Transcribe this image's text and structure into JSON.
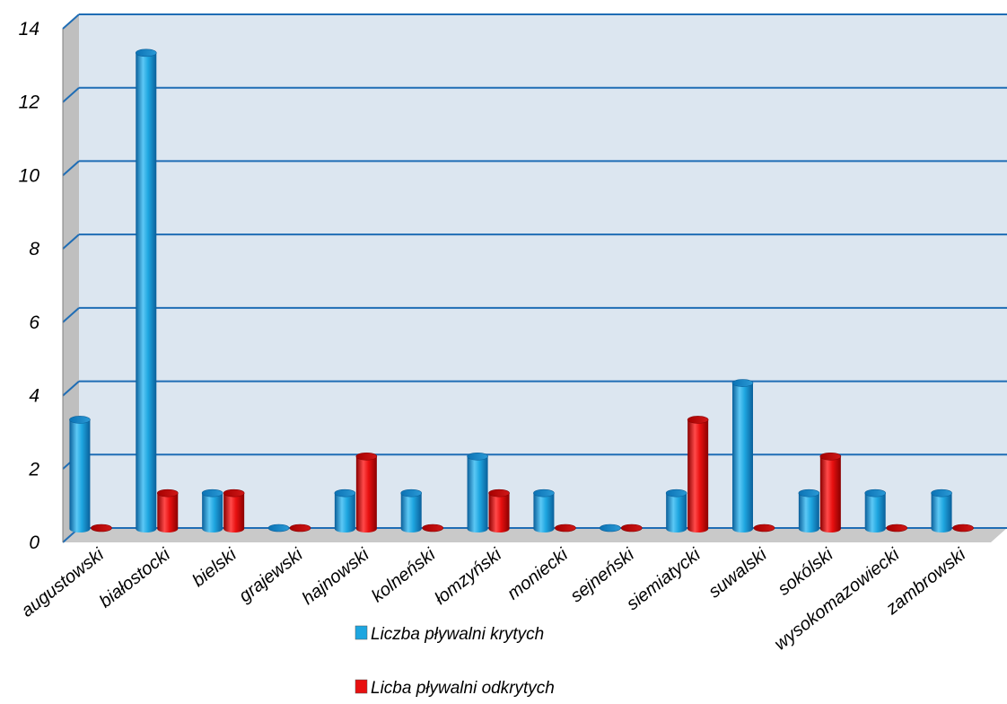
{
  "chart_data": {
    "type": "bar",
    "title": "",
    "xlabel": "",
    "ylabel": "",
    "ylim": [
      0,
      14
    ],
    "yticks": [
      "0",
      "2",
      "4",
      "6",
      "8",
      "10",
      "12",
      "14"
    ],
    "grid": true,
    "legend_position": "bottom",
    "categories": [
      "augustowski",
      "białostocki",
      "bielski",
      "grajewski",
      "hajnowski",
      "kolneński",
      "łomzyński",
      "moniecki",
      "sejneński",
      "siemiatycki",
      "suwalski",
      "sokólski",
      "wysokomazowiecki",
      "zambrowski"
    ],
    "series": [
      {
        "name": "Liczba pływalni krytych",
        "color": "#1ea6e0",
        "values": [
          3,
          13,
          1,
          0,
          1,
          1,
          2,
          1,
          0,
          1,
          4,
          1,
          1,
          1
        ]
      },
      {
        "name": "Licba pływalni odkrytych",
        "color": "#e81010",
        "values": [
          0,
          1,
          1,
          0,
          2,
          0,
          1,
          0,
          0,
          3,
          0,
          2,
          0,
          0
        ]
      }
    ],
    "colors": {
      "plot_background": "#dce6f0",
      "gridline": "#1f6db5",
      "side_wall": "#bfbfbf"
    }
  }
}
